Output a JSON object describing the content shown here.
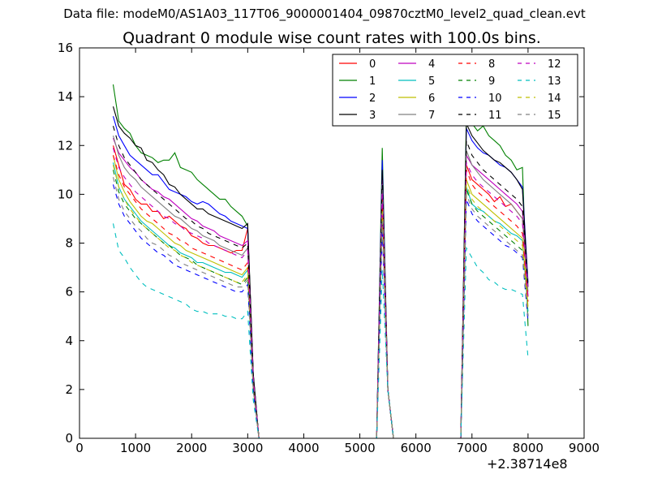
{
  "figure": {
    "suptitle": "Data file: modeM0/AS1A03_117T06_9000001404_09870cztM0_level2_quad_clean.evt"
  },
  "chart_data": {
    "type": "line",
    "title": "Quadrant 0 module wise count rates with 100.0s bins.",
    "xlabel": "",
    "ylabel": "",
    "x_offset_label": "+2.38714e8",
    "xlim": [
      0,
      9000
    ],
    "ylim": [
      0,
      16
    ],
    "xticks": [
      0,
      1000,
      2000,
      3000,
      4000,
      5000,
      6000,
      7000,
      8000,
      9000
    ],
    "yticks": [
      0,
      2,
      4,
      6,
      8,
      10,
      12,
      14,
      16
    ],
    "grid": false,
    "legend_position": "top-right",
    "legend_columns": 4,
    "segments": [
      {
        "x_start": 600,
        "x_end": 3000,
        "step": 100
      },
      {
        "x_start": 5400,
        "x_end": 5400,
        "step": 100
      },
      {
        "x_start": 6900,
        "x_end": 8000,
        "step": 100
      }
    ],
    "gap_values": {
      "x": [
        3100,
        3200,
        3300,
        4000,
        5000,
        5300,
        5400,
        5500,
        5600,
        6000,
        6500,
        6800,
        6900
      ],
      "note": "rates drop to ~0 between active segments; peak near 5400"
    },
    "series": [
      {
        "name": "0",
        "color": "#ff0000",
        "dash": "solid",
        "seg1": [
          12.0,
          11.2,
          10.4,
          10.2,
          9.8,
          9.6,
          9.6,
          9.3,
          9.3,
          9.0,
          9.1,
          8.9,
          8.7,
          8.6,
          8.3,
          8.2,
          8.0,
          7.9,
          7.9,
          7.8,
          7.7,
          7.6,
          7.7,
          7.7,
          8.6
        ],
        "peak": 10.2,
        "seg3": [
          11.2,
          10.6,
          10.4,
          10.2,
          10.0,
          9.7,
          9.9,
          9.5,
          9.6,
          9.3,
          9.0,
          5.8
        ]
      },
      {
        "name": "1",
        "color": "#008000",
        "dash": "solid",
        "seg1": [
          14.5,
          13.0,
          12.7,
          12.5,
          12.0,
          11.7,
          11.6,
          11.5,
          11.3,
          11.4,
          11.4,
          11.7,
          11.1,
          11.0,
          10.9,
          10.6,
          10.4,
          10.2,
          10.0,
          9.8,
          9.8,
          9.5,
          9.3,
          9.1,
          8.7
        ],
        "peak": 11.9,
        "seg3": [
          13.3,
          12.9,
          12.6,
          12.8,
          12.4,
          12.2,
          12.0,
          11.6,
          11.4,
          11.0,
          11.1,
          4.6
        ]
      },
      {
        "name": "2",
        "color": "#0000ff",
        "dash": "solid",
        "seg1": [
          13.2,
          12.4,
          12.0,
          11.6,
          11.4,
          11.2,
          11.0,
          10.8,
          10.8,
          10.5,
          10.2,
          10.1,
          10.0,
          9.9,
          9.7,
          9.6,
          9.7,
          9.6,
          9.4,
          9.2,
          9.1,
          8.9,
          8.8,
          8.7,
          8.6
        ],
        "peak": 11.4,
        "seg3": [
          12.7,
          12.2,
          11.9,
          11.7,
          11.6,
          11.4,
          11.2,
          11.1,
          10.9,
          10.6,
          10.3,
          6.4
        ]
      },
      {
        "name": "3",
        "color": "#000000",
        "dash": "solid",
        "seg1": [
          13.6,
          12.8,
          12.5,
          12.3,
          12.0,
          11.9,
          11.4,
          11.3,
          11.0,
          10.8,
          10.4,
          10.3,
          10.0,
          9.8,
          9.6,
          9.4,
          9.4,
          9.2,
          9.1,
          9.0,
          8.9,
          8.8,
          8.7,
          8.6,
          8.8
        ],
        "peak": 11.0,
        "seg3": [
          12.9,
          12.4,
          12.1,
          11.8,
          11.6,
          11.4,
          11.3,
          11.1,
          10.9,
          10.6,
          10.2,
          6.2
        ]
      },
      {
        "name": "4",
        "color": "#bf00bf",
        "dash": "solid",
        "seg1": [
          12.3,
          11.7,
          11.4,
          11.1,
          10.9,
          10.6,
          10.4,
          10.2,
          10.1,
          9.9,
          9.8,
          9.6,
          9.4,
          9.2,
          9.0,
          8.9,
          8.7,
          8.6,
          8.5,
          8.3,
          8.2,
          8.1,
          8.0,
          7.9,
          8.1
        ],
        "peak": 10.6,
        "seg3": [
          11.6,
          11.2,
          11.0,
          10.8,
          10.6,
          10.4,
          10.2,
          10.0,
          9.8,
          9.6,
          9.3,
          6.2
        ]
      },
      {
        "name": "5",
        "color": "#00bfbf",
        "dash": "solid",
        "seg1": [
          11.3,
          10.3,
          9.8,
          9.5,
          9.2,
          8.9,
          8.7,
          8.5,
          8.3,
          8.1,
          7.9,
          7.8,
          7.6,
          7.5,
          7.4,
          7.2,
          7.2,
          7.1,
          7.0,
          6.9,
          6.8,
          6.8,
          6.7,
          6.6,
          6.9
        ],
        "peak": 9.2,
        "seg3": [
          10.3,
          9.6,
          9.4,
          9.3,
          9.1,
          8.9,
          8.8,
          8.6,
          8.4,
          8.3,
          8.1,
          5.2
        ]
      },
      {
        "name": "6",
        "color": "#bfbf00",
        "dash": "solid",
        "seg1": [
          11.6,
          10.6,
          10.1,
          9.7,
          9.4,
          9.1,
          8.9,
          8.8,
          8.6,
          8.4,
          8.2,
          8.0,
          7.9,
          7.7,
          7.6,
          7.5,
          7.4,
          7.3,
          7.2,
          7.1,
          7.0,
          6.9,
          6.8,
          6.7,
          7.0
        ],
        "peak": 9.6,
        "seg3": [
          10.6,
          10.0,
          9.8,
          9.6,
          9.4,
          9.2,
          9.0,
          8.8,
          8.6,
          8.4,
          8.2,
          5.4
        ]
      },
      {
        "name": "7",
        "color": "#808080",
        "dash": "solid",
        "seg1": [
          12.4,
          11.6,
          11.1,
          10.8,
          10.6,
          10.3,
          10.1,
          9.9,
          9.7,
          9.5,
          9.3,
          9.1,
          9.0,
          8.8,
          8.6,
          8.5,
          8.3,
          8.2,
          8.1,
          7.9,
          7.8,
          7.7,
          7.6,
          7.5,
          7.8
        ],
        "peak": 10.4,
        "seg3": [
          11.8,
          11.2,
          10.9,
          10.6,
          10.4,
          10.2,
          10.0,
          9.8,
          9.6,
          9.3,
          9.0,
          6.0
        ]
      },
      {
        "name": "8",
        "color": "#ff0000",
        "dash": "dashed",
        "seg1": [
          11.6,
          10.8,
          10.3,
          10.0,
          9.7,
          9.4,
          9.2,
          9.0,
          8.8,
          8.6,
          8.4,
          8.3,
          8.1,
          8.0,
          7.8,
          7.7,
          7.6,
          7.5,
          7.4,
          7.3,
          7.2,
          7.1,
          7.0,
          6.9,
          7.2
        ],
        "peak": 9.8,
        "seg3": [
          11.0,
          10.4,
          10.1,
          9.9,
          9.7,
          9.5,
          9.3,
          9.1,
          8.9,
          8.7,
          8.4,
          5.6
        ]
      },
      {
        "name": "9",
        "color": "#008000",
        "dash": "dashed",
        "seg1": [
          11.0,
          10.1,
          9.6,
          9.3,
          9.0,
          8.8,
          8.6,
          8.4,
          8.2,
          8.0,
          7.9,
          7.7,
          7.5,
          7.4,
          7.3,
          7.1,
          7.0,
          6.9,
          6.8,
          6.7,
          6.6,
          6.5,
          6.4,
          6.3,
          6.6
        ],
        "peak": 9.0,
        "seg3": [
          10.2,
          9.6,
          9.3,
          9.1,
          8.9,
          8.7,
          8.5,
          8.3,
          8.1,
          7.9,
          7.7,
          5.0
        ]
      },
      {
        "name": "10",
        "color": "#0000ff",
        "dash": "dashed",
        "seg1": [
          10.4,
          9.6,
          9.1,
          8.8,
          8.5,
          8.2,
          8.0,
          7.8,
          7.6,
          7.5,
          7.3,
          7.1,
          7.0,
          6.9,
          6.8,
          6.7,
          6.6,
          6.5,
          6.4,
          6.3,
          6.2,
          6.1,
          6.0,
          6.0,
          6.3
        ],
        "peak": 8.6,
        "seg3": [
          9.8,
          9.2,
          8.9,
          8.7,
          8.5,
          8.3,
          8.1,
          7.9,
          7.8,
          7.6,
          7.4,
          4.8
        ]
      },
      {
        "name": "11",
        "color": "#000000",
        "dash": "dashed",
        "seg1": [
          12.8,
          12.0,
          11.5,
          11.2,
          10.9,
          10.6,
          10.4,
          10.2,
          10.0,
          9.8,
          9.6,
          9.4,
          9.2,
          9.0,
          8.9,
          8.7,
          8.6,
          8.4,
          8.3,
          8.2,
          8.1,
          8.0,
          7.9,
          7.8,
          8.0
        ],
        "peak": 10.8,
        "seg3": [
          12.2,
          11.6,
          11.3,
          11.0,
          10.8,
          10.6,
          10.4,
          10.2,
          10.0,
          9.8,
          9.5,
          6.2
        ]
      },
      {
        "name": "12",
        "color": "#bf00bf",
        "dash": "dashed",
        "seg1": [
          11.9,
          11.1,
          10.7,
          10.4,
          10.1,
          9.9,
          9.7,
          9.5,
          9.3,
          9.1,
          9.0,
          8.8,
          8.7,
          8.5,
          8.4,
          8.3,
          8.2,
          8.0,
          7.9,
          7.8,
          7.7,
          7.6,
          7.5,
          7.4,
          7.7
        ],
        "peak": 10.1,
        "seg3": [
          11.3,
          10.8,
          10.5,
          10.3,
          10.1,
          9.9,
          9.7,
          9.5,
          9.3,
          9.1,
          8.8,
          5.8
        ]
      },
      {
        "name": "13",
        "color": "#00bfbf",
        "dash": "dashed",
        "seg1": [
          8.8,
          7.7,
          7.4,
          7.0,
          6.7,
          6.4,
          6.2,
          6.1,
          6.0,
          5.9,
          5.8,
          5.7,
          5.6,
          5.5,
          5.3,
          5.2,
          5.2,
          5.1,
          5.1,
          5.1,
          5.0,
          5.0,
          4.9,
          4.9,
          5.2
        ],
        "peak": 6.9,
        "seg3": [
          7.8,
          7.4,
          7.0,
          6.8,
          6.5,
          6.4,
          6.2,
          6.1,
          6.1,
          6.0,
          5.9,
          3.3
        ]
      },
      {
        "name": "14",
        "color": "#bfbf00",
        "dash": "dashed",
        "seg1": [
          11.2,
          10.3,
          9.8,
          9.4,
          9.1,
          8.8,
          8.6,
          8.4,
          8.2,
          8.0,
          7.8,
          7.7,
          7.5,
          7.4,
          7.2,
          7.1,
          7.0,
          6.9,
          6.8,
          6.7,
          6.6,
          6.5,
          6.4,
          6.4,
          6.7
        ],
        "peak": 9.3,
        "seg3": [
          10.4,
          9.8,
          9.5,
          9.3,
          9.1,
          8.9,
          8.7,
          8.5,
          8.3,
          8.1,
          7.9,
          5.2
        ]
      },
      {
        "name": "15",
        "color": "#808080",
        "dash": "dashed",
        "seg1": [
          10.7,
          9.8,
          9.3,
          9.0,
          8.7,
          8.5,
          8.2,
          8.0,
          7.9,
          7.7,
          7.5,
          7.4,
          7.2,
          7.1,
          7.0,
          6.9,
          6.8,
          6.7,
          6.6,
          6.5,
          6.4,
          6.3,
          6.2,
          6.2,
          6.5
        ],
        "peak": 8.9,
        "seg3": [
          10.0,
          9.4,
          9.1,
          8.9,
          8.7,
          8.5,
          8.3,
          8.1,
          7.9,
          7.7,
          7.5,
          5.0
        ]
      }
    ]
  }
}
